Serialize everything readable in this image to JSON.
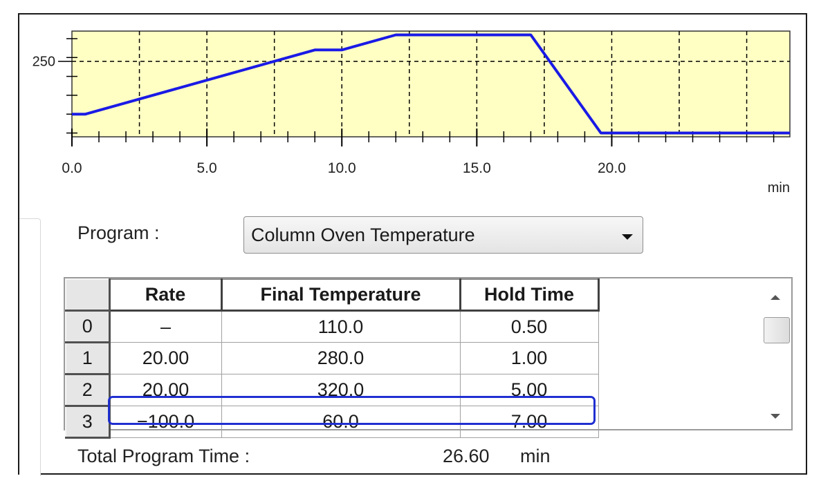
{
  "chart_data": {
    "type": "line",
    "x": [
      0.0,
      0.5,
      9.0,
      10.0,
      12.0,
      17.0,
      19.6,
      26.6
    ],
    "y": [
      110,
      110,
      280,
      280,
      320,
      320,
      60,
      60
    ],
    "xlabel": "min",
    "ylabel": "",
    "xlim": [
      0,
      26.6
    ],
    "ylim": [
      50,
      330
    ],
    "x_ticks": [
      0.0,
      5.0,
      10.0,
      15.0,
      20.0
    ],
    "x_tick_labels": [
      "0.0",
      "5.0",
      "10.0",
      "15.0",
      "20.0"
    ],
    "y_ticks": [
      250
    ],
    "y_tick_labels": [
      "250"
    ],
    "grid": "dashed",
    "background_color": "#ffffc4",
    "line_color": "#1a1ae6"
  },
  "program": {
    "label": "Program :",
    "selected": "Column Oven Temperature"
  },
  "table": {
    "headers": [
      "Rate",
      "Final Temperature",
      "Hold Time"
    ],
    "rows": [
      {
        "index": "0",
        "rate": "–",
        "final_temperature": "110.0",
        "hold_time": "0.50"
      },
      {
        "index": "1",
        "rate": "20.00",
        "final_temperature": "280.0",
        "hold_time": "1.00"
      },
      {
        "index": "2",
        "rate": "20.00",
        "final_temperature": "320.0",
        "hold_time": "5.00"
      },
      {
        "index": "3",
        "rate": "−100.0",
        "final_temperature": "60.0",
        "hold_time": "7.00"
      }
    ]
  },
  "total": {
    "label": "Total Program Time :",
    "value": "26.60",
    "unit": "min"
  },
  "colors": {
    "plot_bg": "#ffffc4",
    "line": "#1a1ae6",
    "selection_outline": "#1f2fd0"
  }
}
